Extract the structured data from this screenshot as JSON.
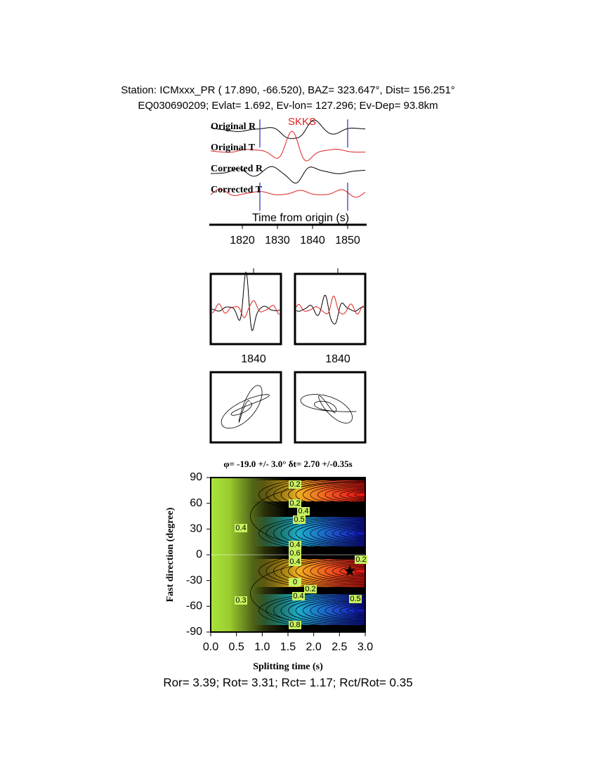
{
  "header": {
    "line1": "Station: ICMxxx_PR (  17.890,  -66.520), BAZ=  323.647°, Dist=  156.251°",
    "line2": "EQ030690209; Evlat=   1.692, Ev-lon= 127.296; Ev-Dep= 93.8km"
  },
  "traces": {
    "labels": [
      "Original R",
      "Original T",
      "Corrected R",
      "Corrected T"
    ],
    "phase": "SKKS",
    "xlabel": "Time from origin (s)",
    "xlim": [
      1811,
      1855
    ],
    "xticks": [
      1820,
      1830,
      1840,
      1850
    ],
    "window": [
      1825,
      1850
    ]
  },
  "panels": {
    "ticks": [
      1840,
      1840
    ]
  },
  "grid_search": {
    "title": "φ= -19.0 +/- 3.0° δt= 2.70 +/-0.35s",
    "xlabel": "Splitting time (s)",
    "ylabel": "Fast direction (degree)",
    "xlim": [
      0,
      3
    ],
    "ylim": [
      -90,
      90
    ],
    "xticks": [
      {
        "value": 0,
        "label": "0.0"
      },
      {
        "value": 0.5,
        "label": "0.5"
      },
      {
        "value": 1,
        "label": "1.0"
      },
      {
        "value": 1.5,
        "label": "1.5"
      },
      {
        "value": 2,
        "label": "2.0"
      },
      {
        "value": 2.5,
        "label": "2.5"
      },
      {
        "value": 3,
        "label": "3.0"
      }
    ],
    "yticks": [
      -90,
      -60,
      -30,
      0,
      30,
      60,
      90
    ],
    "contour_labels": [
      0.2,
      0.2,
      0.4,
      0.5,
      0.4,
      0.6,
      0.4,
      0.2,
      0,
      0.2,
      0.4,
      0.5,
      0.8,
      0.3,
      0.4
    ],
    "best": {
      "dt": 2.7,
      "phi": -19
    }
  },
  "footer": "Ror= 3.39; Rot= 3.31; Rct= 1.17; Rct/Rot= 0.35"
}
